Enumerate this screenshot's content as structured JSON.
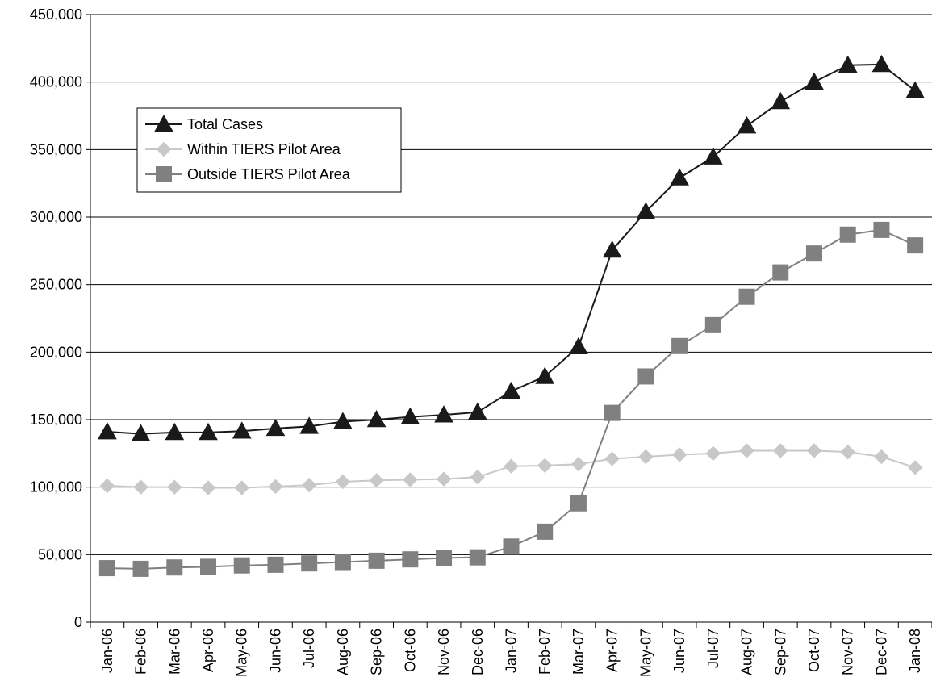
{
  "chart_data": {
    "type": "line",
    "categories": [
      "Jan-06",
      "Feb-06",
      "Mar-06",
      "Apr-06",
      "May-06",
      "Jun-06",
      "Jul-06",
      "Aug-06",
      "Sep-06",
      "Oct-06",
      "Nov-06",
      "Dec-06",
      "Jan-07",
      "Feb-07",
      "Mar-07",
      "Apr-07",
      "May-07",
      "Jun-07",
      "Jul-07",
      "Aug-07",
      "Sep-07",
      "Oct-07",
      "Nov-07",
      "Dec-07",
      "Jan-08"
    ],
    "ylim": [
      0,
      450000
    ],
    "yticks": [
      0,
      50000,
      100000,
      150000,
      200000,
      250000,
      300000,
      350000,
      400000,
      450000
    ],
    "ytick_labels": [
      "0",
      "50,000",
      "100,000",
      "150,000",
      "200,000",
      "250,000",
      "300,000",
      "350,000",
      "400,000",
      "450,000"
    ],
    "grid": "horizontal",
    "legend_position": "top-left",
    "series": [
      {
        "name": "Total Cases",
        "marker": "triangle",
        "color": "#1a1a1a",
        "values": [
          141000,
          139500,
          140500,
          140500,
          141500,
          143500,
          145000,
          148500,
          150000,
          152000,
          153500,
          155500,
          171000,
          182000,
          204000,
          275500,
          304000,
          329000,
          344500,
          367500,
          385500,
          400000,
          412500,
          413000,
          393500
        ]
      },
      {
        "name": "Within TIERS Pilot Area",
        "marker": "diamond",
        "color": "#c8c8c8",
        "values": [
          101000,
          100000,
          100000,
          99500,
          99500,
          100500,
          101500,
          104000,
          105000,
          105500,
          106000,
          107500,
          115500,
          116000,
          117000,
          121000,
          122500,
          124000,
          125000,
          127000,
          127000,
          127000,
          126000,
          122500,
          114500
        ]
      },
      {
        "name": "Outside TIERS Pilot Area",
        "marker": "square",
        "color": "#808080",
        "values": [
          40000,
          39500,
          40500,
          41000,
          42000,
          42500,
          43500,
          44500,
          45500,
          46500,
          47500,
          48000,
          56000,
          67000,
          88000,
          155000,
          182000,
          204500,
          220000,
          241000,
          259000,
          273000,
          287000,
          290500,
          279000
        ]
      }
    ]
  }
}
